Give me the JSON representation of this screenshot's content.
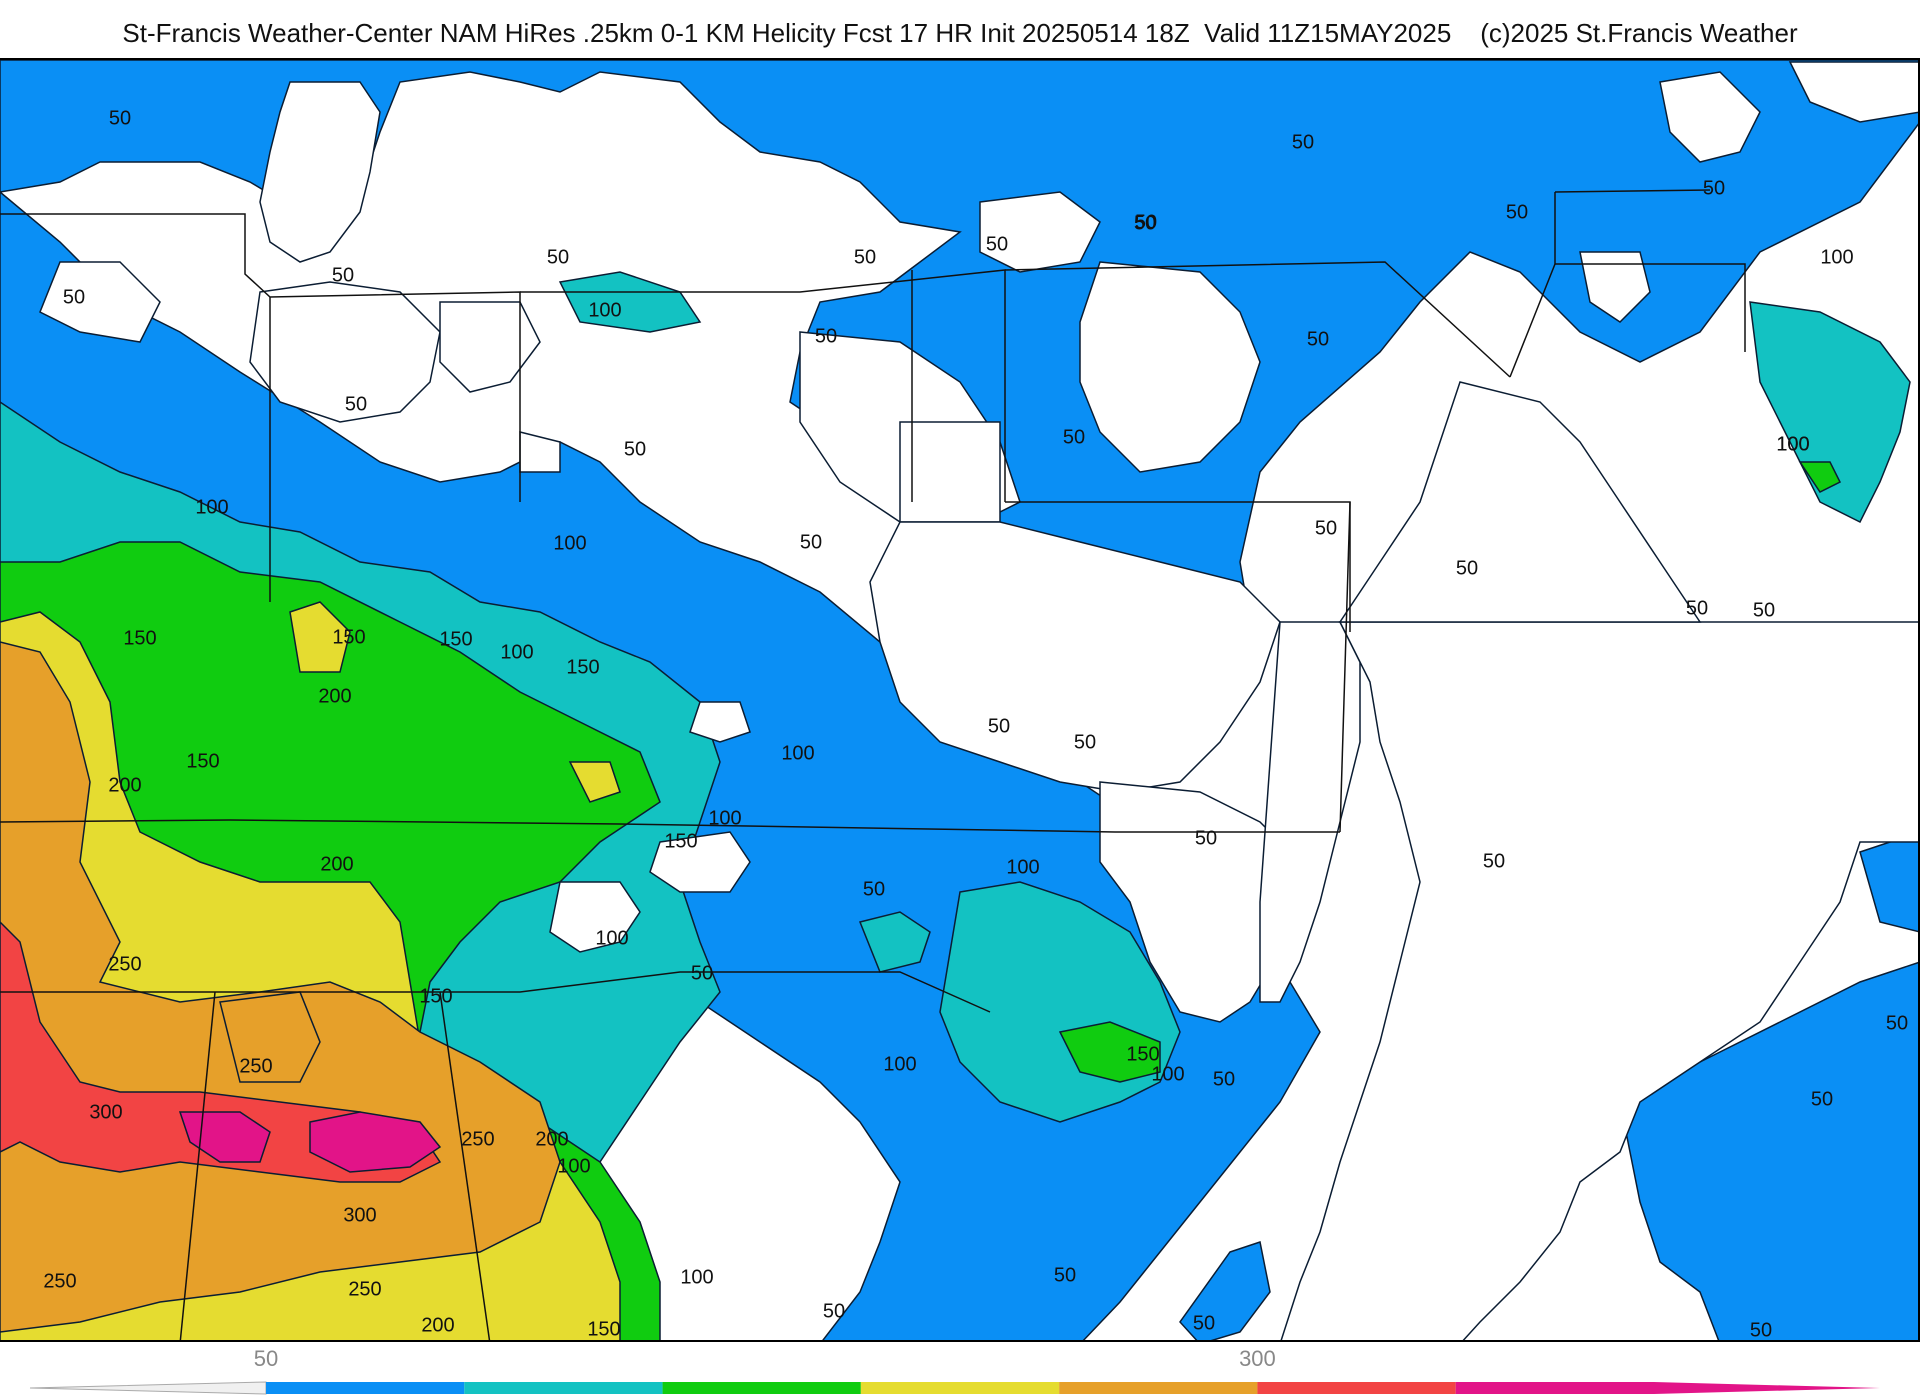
{
  "title": "St-Francis Weather-Center NAM HiRes .25km 0-1 KM Helicity Fcst 17 HR Init 20250514 18Z  Valid 11Z15MAY2025    (c)2025 St.Francis Weather",
  "colorbar": {
    "ticks": [
      {
        "label": "50",
        "value": 50
      },
      {
        "label": "300",
        "value": 300
      }
    ],
    "bins": [
      {
        "min": 50,
        "max": 100,
        "color": "#0a8ff5"
      },
      {
        "min": 100,
        "max": 150,
        "color": "#13c2c2"
      },
      {
        "min": 150,
        "max": 200,
        "color": "#10cc10"
      },
      {
        "min": 200,
        "max": 250,
        "color": "#e5dc30"
      },
      {
        "min": 250,
        "max": 300,
        "color": "#e6a02a"
      },
      {
        "min": 300,
        "max": 350,
        "color": "#f24444"
      },
      {
        "min": 350,
        "max": 400,
        "color": "#e21488"
      }
    ]
  },
  "contour_labels": [
    {
      "text": "50"
    },
    {
      "text": "50"
    },
    {
      "text": "50"
    },
    {
      "text": "50"
    },
    {
      "text": "50"
    },
    {
      "text": "50"
    },
    {
      "text": "50"
    },
    {
      "text": "50"
    },
    {
      "text": "50"
    },
    {
      "text": "50"
    },
    {
      "text": "50"
    },
    {
      "text": "50"
    },
    {
      "text": "50"
    },
    {
      "text": "50"
    },
    {
      "text": "50"
    },
    {
      "text": "50"
    },
    {
      "text": "50"
    },
    {
      "text": "50"
    },
    {
      "text": "50"
    },
    {
      "text": "50"
    },
    {
      "text": "50"
    },
    {
      "text": "50"
    },
    {
      "text": "50"
    },
    {
      "text": "50"
    },
    {
      "text": "50"
    },
    {
      "text": "50"
    },
    {
      "text": "50"
    },
    {
      "text": "50"
    },
    {
      "text": "50"
    },
    {
      "text": "50"
    },
    {
      "text": "50"
    },
    {
      "text": "50"
    },
    {
      "text": "50"
    },
    {
      "text": "50"
    },
    {
      "text": "100"
    },
    {
      "text": "100"
    },
    {
      "text": "100"
    },
    {
      "text": "100"
    },
    {
      "text": "100"
    },
    {
      "text": "100"
    },
    {
      "text": "100"
    },
    {
      "text": "100"
    },
    {
      "text": "100"
    },
    {
      "text": "100"
    },
    {
      "text": "100"
    },
    {
      "text": "100"
    },
    {
      "text": "100"
    },
    {
      "text": "100"
    },
    {
      "text": "100"
    },
    {
      "text": "150"
    },
    {
      "text": "150"
    },
    {
      "text": "150"
    },
    {
      "text": "150"
    },
    {
      "text": "150"
    },
    {
      "text": "150"
    },
    {
      "text": "150"
    },
    {
      "text": "150"
    },
    {
      "text": "150"
    },
    {
      "text": "200"
    },
    {
      "text": "200"
    },
    {
      "text": "200"
    },
    {
      "text": "200"
    },
    {
      "text": "200"
    },
    {
      "text": "250"
    },
    {
      "text": "250"
    },
    {
      "text": "250"
    },
    {
      "text": "250"
    },
    {
      "text": "250"
    },
    {
      "text": "300"
    },
    {
      "text": "300"
    }
  ]
}
